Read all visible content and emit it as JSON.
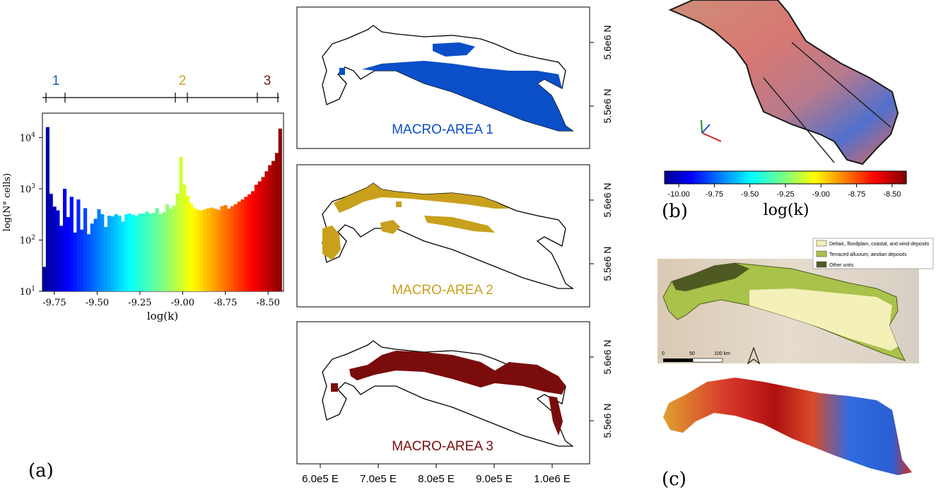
{
  "panel_labels": {
    "a": "(a)",
    "b": "(b)",
    "c": "(c)"
  },
  "chart_data": [
    {
      "type": "bar",
      "panel": "(a)",
      "xlabel": "log(k)",
      "ylabel": "log(N° cells)",
      "y_scale": "log",
      "ylim": [
        10,
        30000
      ],
      "xlim": [
        -9.82,
        -8.41
      ],
      "x_ticks": [
        "-9.75",
        "-9.50",
        "-9.25",
        "-9.00",
        "-8.75",
        "-8.50"
      ],
      "y_ticks": [
        "10^1",
        "10^2",
        "10^3",
        "10^4"
      ],
      "bin_left_edges": [
        -9.82,
        -9.8,
        -9.78,
        -9.76,
        -9.74,
        -9.72,
        -9.7,
        -9.68,
        -9.66,
        -9.64,
        -9.62,
        -9.6,
        -9.58,
        -9.56,
        -9.54,
        -9.52,
        -9.5,
        -9.48,
        -9.46,
        -9.44,
        -9.42,
        -9.4,
        -9.38,
        -9.36,
        -9.34,
        -9.32,
        -9.3,
        -9.28,
        -9.26,
        -9.24,
        -9.22,
        -9.2,
        -9.18,
        -9.16,
        -9.14,
        -9.12,
        -9.1,
        -9.08,
        -9.06,
        -9.04,
        -9.02,
        -9.0,
        -8.98,
        -8.96,
        -8.94,
        -8.92,
        -8.9,
        -8.88,
        -8.86,
        -8.84,
        -8.82,
        -8.8,
        -8.78,
        -8.76,
        -8.74,
        -8.72,
        -8.7,
        -8.68,
        -8.66,
        -8.64,
        -8.62,
        -8.6,
        -8.58,
        -8.56,
        -8.54,
        -8.52,
        -8.5,
        -8.48,
        -8.46,
        -8.44
      ],
      "values": [
        30,
        16000,
        800,
        450,
        380,
        190,
        1000,
        280,
        700,
        140,
        620,
        160,
        420,
        130,
        210,
        260,
        400,
        320,
        180,
        300,
        290,
        320,
        300,
        230,
        320,
        330,
        310,
        300,
        330,
        330,
        360,
        330,
        340,
        420,
        320,
        350,
        500,
        410,
        470,
        800,
        4200,
        1200,
        730,
        520,
        420,
        390,
        380,
        400,
        420,
        430,
        410,
        390,
        460,
        480,
        410,
        460,
        500,
        560,
        620,
        700,
        780,
        900,
        1200,
        1400,
        1700,
        2200,
        2900,
        3500,
        5000,
        15000
      ],
      "marker_scale": {
        "labels": [
          "1",
          "2",
          "3"
        ],
        "label_colors": [
          "#1f5fb5",
          "#c9a227",
          "#7b1a1a"
        ]
      }
    },
    {
      "type": "map",
      "panel": "macro-area maps",
      "maps": [
        {
          "label": "MACRO-AREA 1",
          "color": "#0a4fc8"
        },
        {
          "label": "MACRO-AREA 2",
          "color": "#c8a01c"
        },
        {
          "label": "MACRO-AREA 3",
          "color": "#7a0c0c"
        }
      ],
      "y_ticks": [
        "5.6e6 N",
        "5.5e6 N"
      ],
      "x_ticks": [
        "6.0e5 E",
        "7.0e5 E",
        "8.0e5 E",
        "9.0e5 E",
        "1.0e6 E"
      ]
    },
    {
      "type": "heatmap",
      "panel": "(b)",
      "colorbar": {
        "ticks": [
          "-10.00",
          "-9.75",
          "-9.50",
          "-9.25",
          "-9.00",
          "-8.75",
          "-8.50"
        ],
        "label": "log(k)",
        "range": [
          -10.1,
          -8.4
        ]
      }
    },
    {
      "type": "map",
      "panel": "(c)",
      "legend": [
        {
          "label": "Deltaic, floodplain, coastal, and wind deposits",
          "color": "#f3f1b8"
        },
        {
          "label": "Terraced alluvium, aeolian deposits",
          "color": "#a9c24a"
        },
        {
          "label": "Other units",
          "color": "#4e5a22"
        }
      ],
      "scale_bar": [
        "0",
        "50",
        "100 km"
      ]
    }
  ]
}
